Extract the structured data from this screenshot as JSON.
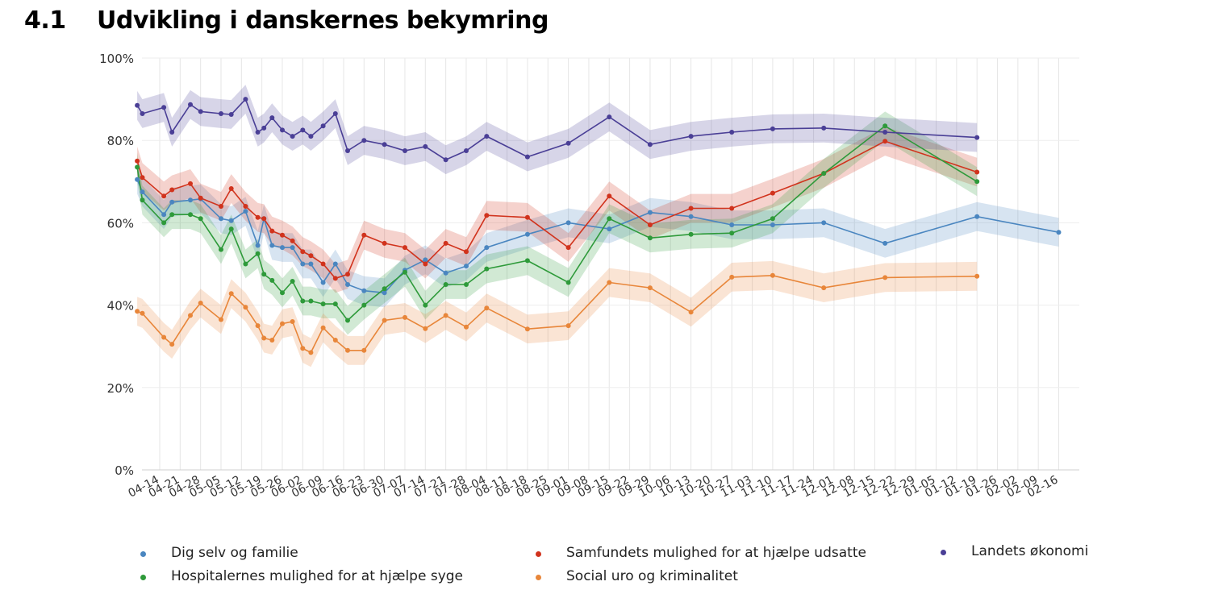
{
  "header": {
    "section_number": "4.1",
    "title": "Udvikling i danskernes bekymring"
  },
  "chart_data": {
    "type": "line",
    "title": "Udvikling i danskernes bekymring",
    "y_tick_labels": [
      "0%",
      "20%",
      "40%",
      "60%",
      "80%",
      "100%"
    ],
    "ylim": [
      0,
      100
    ],
    "grid": "vertical",
    "legend_position": "bottom",
    "x_tick_labels": [
      "04-14",
      "04-21",
      "04-28",
      "05-05",
      "05-12",
      "05-19",
      "05-26",
      "06-02",
      "06-09",
      "06-16",
      "06-23",
      "06-30",
      "07-07",
      "07-14",
      "07-21",
      "07-28",
      "08-04",
      "08-11",
      "08-18",
      "08-25",
      "09-01",
      "09-08",
      "09-15",
      "09-22",
      "09-29",
      "10-06",
      "10-13",
      "10-20",
      "10-27",
      "11-03",
      "11-10",
      "11-17",
      "11-24",
      "12-01",
      "12-08",
      "12-15",
      "12-22",
      "12-29",
      "01-05",
      "01-12",
      "01-19",
      "01-26",
      "02-02",
      "02-09",
      "02-16"
    ],
    "series": [
      {
        "name": "Dig selv og familie",
        "color": "#4a86c0",
        "points": [
          [
            -1.1,
            70.5
          ],
          [
            -0.85,
            67.5
          ],
          [
            0.2,
            62
          ],
          [
            0.6,
            65
          ],
          [
            1.5,
            65.5
          ],
          [
            2,
            65.8
          ],
          [
            3,
            61
          ],
          [
            3.5,
            60.5
          ],
          [
            4.2,
            62.8
          ],
          [
            4.8,
            54.5
          ],
          [
            5.1,
            61
          ],
          [
            5.5,
            54.5
          ],
          [
            6,
            54
          ],
          [
            6.5,
            54
          ],
          [
            7,
            50
          ],
          [
            7.4,
            50
          ],
          [
            8,
            45.5
          ],
          [
            8.6,
            50
          ],
          [
            9.2,
            45
          ],
          [
            10,
            43.5
          ],
          [
            11,
            43
          ],
          [
            12,
            48.5
          ],
          [
            13,
            51
          ],
          [
            14,
            47.8
          ],
          [
            15,
            49.5
          ],
          [
            16,
            54
          ],
          [
            18,
            57.2
          ],
          [
            20,
            60
          ],
          [
            22,
            58.5
          ],
          [
            24,
            62.5
          ],
          [
            26,
            61.5
          ],
          [
            28,
            59.5
          ],
          [
            30,
            59.5
          ],
          [
            32.5,
            60
          ],
          [
            35.5,
            55
          ],
          [
            40,
            61.5
          ],
          [
            44,
            57.7
          ]
        ]
      },
      {
        "name": "Samfundets mulighed for at hjælpe udsatte",
        "color": "#d1331d",
        "points": [
          [
            -1.1,
            75
          ],
          [
            -0.85,
            71
          ],
          [
            0.2,
            66.5
          ],
          [
            0.6,
            68
          ],
          [
            1.5,
            69.5
          ],
          [
            2,
            66
          ],
          [
            3,
            64
          ],
          [
            3.5,
            68.3
          ],
          [
            4.2,
            64
          ],
          [
            4.8,
            61.3
          ],
          [
            5.1,
            61
          ],
          [
            5.5,
            58
          ],
          [
            6,
            57
          ],
          [
            6.5,
            55.6
          ],
          [
            7,
            53
          ],
          [
            7.4,
            52
          ],
          [
            8,
            50
          ],
          [
            8.6,
            46.5
          ],
          [
            9.2,
            47.5
          ],
          [
            10,
            57
          ],
          [
            11,
            55
          ],
          [
            12,
            54
          ],
          [
            13,
            50
          ],
          [
            14,
            55
          ],
          [
            15,
            53
          ],
          [
            16,
            61.8
          ],
          [
            18,
            61.3
          ],
          [
            20,
            54
          ],
          [
            22,
            66.5
          ],
          [
            24,
            59.5
          ],
          [
            26,
            63.5
          ],
          [
            28,
            63.5
          ],
          [
            30,
            67.2
          ],
          [
            32.5,
            72
          ],
          [
            35.5,
            79.8
          ],
          [
            40,
            72.3
          ]
        ]
      },
      {
        "name": "Hospitalernes mulighed for at hjælpe syge",
        "color": "#2e9a3a",
        "points": [
          [
            -1.1,
            73.5
          ],
          [
            -0.85,
            65.5
          ],
          [
            0.2,
            60
          ],
          [
            0.6,
            62
          ],
          [
            1.5,
            62
          ],
          [
            2,
            61
          ],
          [
            3,
            53.5
          ],
          [
            3.5,
            58.5
          ],
          [
            4.2,
            50
          ],
          [
            4.8,
            52.5
          ],
          [
            5.1,
            47.5
          ],
          [
            5.5,
            46
          ],
          [
            6,
            43
          ],
          [
            6.5,
            45.8
          ],
          [
            7,
            41
          ],
          [
            7.4,
            41
          ],
          [
            8,
            40.3
          ],
          [
            8.6,
            40.3
          ],
          [
            9.2,
            36.3
          ],
          [
            10,
            40
          ],
          [
            11,
            44
          ],
          [
            12,
            48
          ],
          [
            13,
            40
          ],
          [
            14,
            45
          ],
          [
            15,
            45
          ],
          [
            16,
            48.8
          ],
          [
            18,
            50.8
          ],
          [
            20,
            45.5
          ],
          [
            22,
            61
          ],
          [
            24,
            56.3
          ],
          [
            26,
            57.2
          ],
          [
            28,
            57.5
          ],
          [
            30,
            61
          ],
          [
            32.5,
            72
          ],
          [
            35.5,
            83.5
          ],
          [
            40,
            70
          ]
        ]
      },
      {
        "name": "Social uro og kriminalitet",
        "color": "#e8863a",
        "points": [
          [
            -1.1,
            38.5
          ],
          [
            -0.85,
            38
          ],
          [
            0.2,
            32.2
          ],
          [
            0.6,
            30.5
          ],
          [
            1.5,
            37.5
          ],
          [
            2,
            40.5
          ],
          [
            3,
            36.5
          ],
          [
            3.5,
            42.8
          ],
          [
            4.2,
            39.5
          ],
          [
            4.8,
            35
          ],
          [
            5.1,
            32
          ],
          [
            5.5,
            31.5
          ],
          [
            6,
            35.5
          ],
          [
            6.5,
            36
          ],
          [
            7,
            29.5
          ],
          [
            7.4,
            28.5
          ],
          [
            8,
            34.5
          ],
          [
            8.6,
            31.5
          ],
          [
            9.2,
            29
          ],
          [
            10,
            29
          ],
          [
            11,
            36.3
          ],
          [
            12,
            37
          ],
          [
            13,
            34.3
          ],
          [
            14,
            37.5
          ],
          [
            15,
            34.7
          ],
          [
            16,
            39.3
          ],
          [
            18,
            34.2
          ],
          [
            20,
            35
          ],
          [
            22,
            45.5
          ],
          [
            24,
            44.2
          ],
          [
            26,
            38.3
          ],
          [
            28,
            46.8
          ],
          [
            30,
            47.2
          ],
          [
            32.5,
            44.2
          ],
          [
            35.5,
            46.7
          ],
          [
            40,
            47
          ]
        ]
      },
      {
        "name": "Landets økonomi",
        "color": "#4a3f96",
        "points": [
          [
            -1.1,
            88.5
          ],
          [
            -0.85,
            86.5
          ],
          [
            0.2,
            88
          ],
          [
            0.6,
            82
          ],
          [
            1.5,
            88.7
          ],
          [
            2,
            87
          ],
          [
            3,
            86.5
          ],
          [
            3.5,
            86.3
          ],
          [
            4.2,
            90
          ],
          [
            4.8,
            82
          ],
          [
            5.1,
            83
          ],
          [
            5.5,
            85.5
          ],
          [
            6,
            82.5
          ],
          [
            6.5,
            81
          ],
          [
            7,
            82.5
          ],
          [
            7.4,
            81
          ],
          [
            8,
            83.5
          ],
          [
            8.6,
            86.5
          ],
          [
            9.2,
            77.5
          ],
          [
            10,
            80
          ],
          [
            11,
            79
          ],
          [
            12,
            77.5
          ],
          [
            13,
            78.5
          ],
          [
            14,
            75.3
          ],
          [
            15,
            77.5
          ],
          [
            16,
            81
          ],
          [
            18,
            76
          ],
          [
            20,
            79.3
          ],
          [
            22,
            85.7
          ],
          [
            24,
            79
          ],
          [
            26,
            81
          ],
          [
            28,
            82
          ],
          [
            30,
            82.8
          ],
          [
            32.5,
            83
          ],
          [
            35.5,
            82
          ],
          [
            40,
            80.7
          ]
        ]
      }
    ]
  },
  "legend": {
    "items": [
      {
        "label": "Dig selv og familie",
        "color": "#4a86c0"
      },
      {
        "label": "Samfundets mulighed for at hjælpe udsatte",
        "color": "#d1331d"
      },
      {
        "label": "Landets økonomi",
        "color": "#4a3f96"
      },
      {
        "label": "Hospitalernes mulighed for at hjælpe syge",
        "color": "#2e9a3a"
      },
      {
        "label": "Social uro og kriminalitet",
        "color": "#e8863a"
      }
    ]
  }
}
